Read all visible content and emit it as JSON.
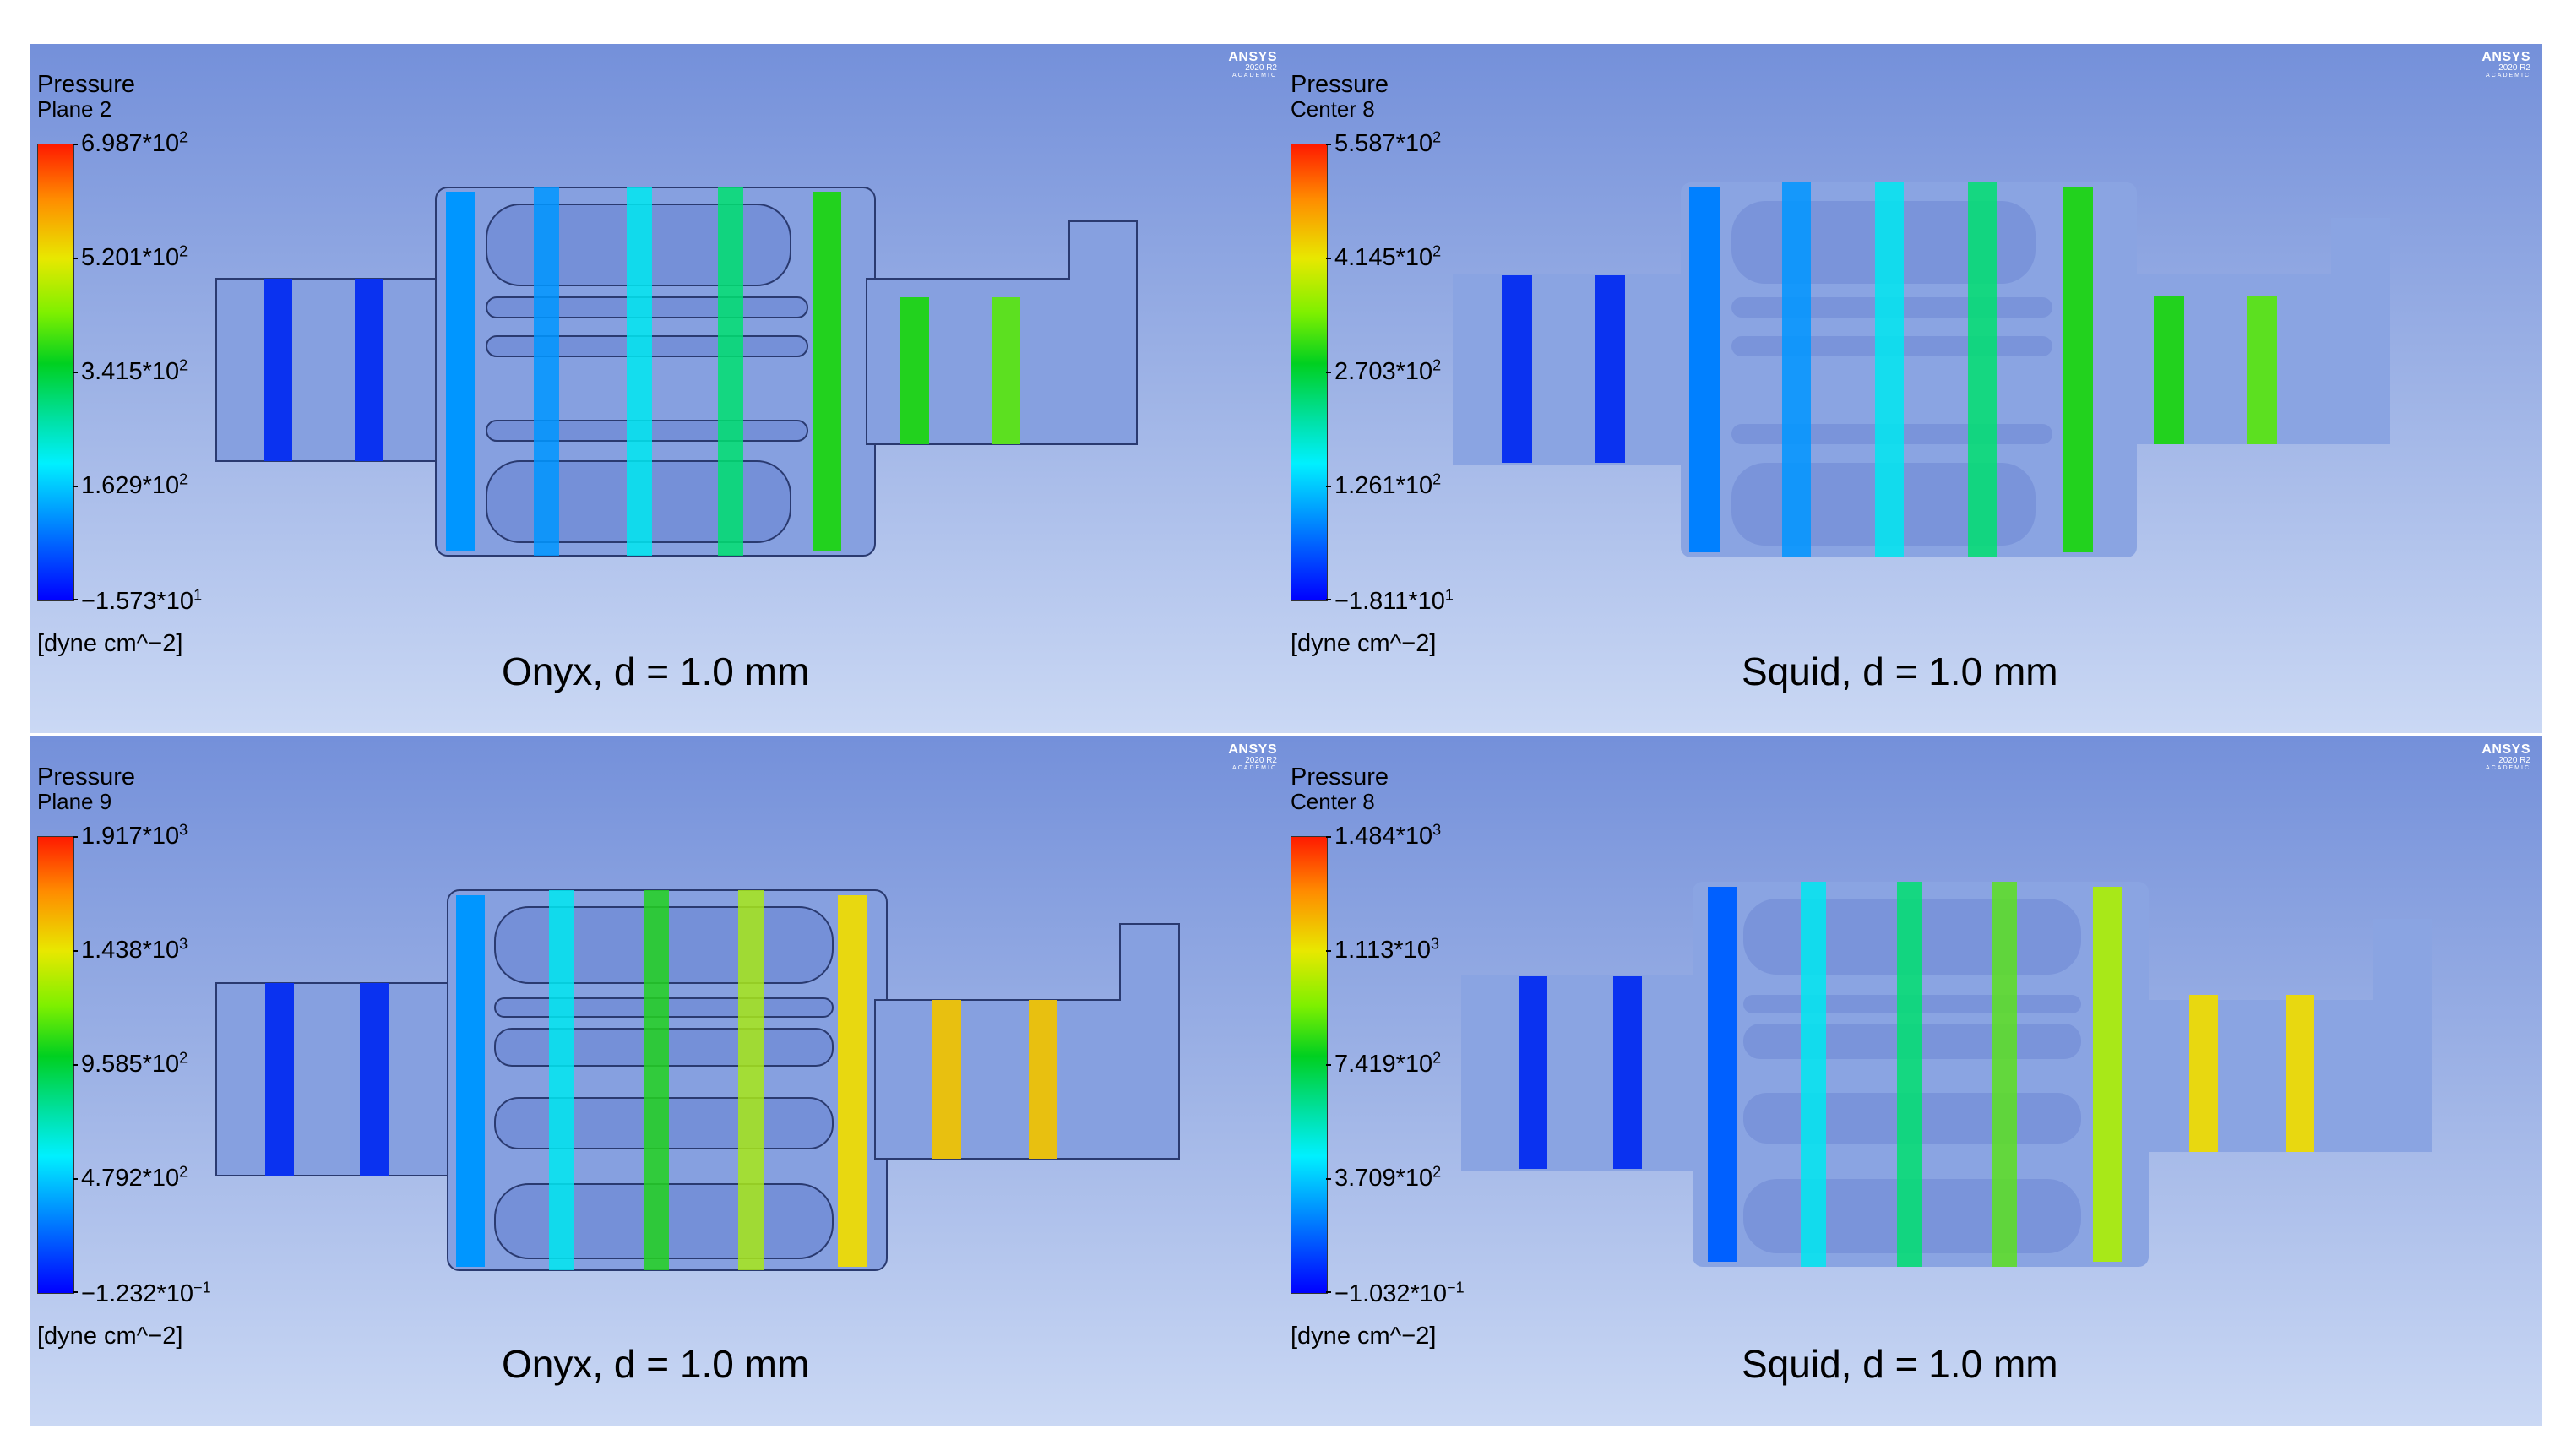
{
  "panels": [
    {
      "variable": "Pressure",
      "location": "Plane 2",
      "colorbar_ticks": [
        {
          "mant": "6.987*10",
          "exp": "2"
        },
        {
          "mant": "5.201*10",
          "exp": "2"
        },
        {
          "mant": "3.415*10",
          "exp": "2"
        },
        {
          "mant": "1.629*10",
          "exp": "2"
        },
        {
          "mant": "−1.573*10",
          "exp": "1"
        }
      ],
      "unit": "[dyne cm^−2]",
      "caption": "Onyx, d = 1.0 mm",
      "logo": {
        "line1": "ANSYS",
        "line2": "2020 R2",
        "line3": "ACADEMIC"
      }
    },
    {
      "variable": "Pressure",
      "location": "Center 8",
      "colorbar_ticks": [
        {
          "mant": "5.587*10",
          "exp": "2"
        },
        {
          "mant": "4.145*10",
          "exp": "2"
        },
        {
          "mant": "2.703*10",
          "exp": "2"
        },
        {
          "mant": "1.261*10",
          "exp": "2"
        },
        {
          "mant": "−1.811*10",
          "exp": "1"
        }
      ],
      "unit": "[dyne cm^−2]",
      "caption": "Squid, d = 1.0 mm",
      "logo": {
        "line1": "ANSYS",
        "line2": "2020 R2",
        "line3": "ACADEMIC"
      }
    },
    {
      "variable": "Pressure",
      "location": "Plane 9",
      "colorbar_ticks": [
        {
          "mant": "1.917*10",
          "exp": "3"
        },
        {
          "mant": "1.438*10",
          "exp": "3"
        },
        {
          "mant": "9.585*10",
          "exp": "2"
        },
        {
          "mant": "4.792*10",
          "exp": "2"
        },
        {
          "mant": "−1.232*10",
          "exp": "−1"
        }
      ],
      "unit": "[dyne cm^−2]",
      "caption": "Onyx, d = 1.0 mm",
      "logo": {
        "line1": "ANSYS",
        "line2": "2020 R2",
        "line3": "ACADEMIC"
      }
    },
    {
      "variable": "Pressure",
      "location": "Center 8",
      "colorbar_ticks": [
        {
          "mant": "1.484*10",
          "exp": "3"
        },
        {
          "mant": "1.113*10",
          "exp": "3"
        },
        {
          "mant": "7.419*10",
          "exp": "2"
        },
        {
          "mant": "3.709*10",
          "exp": "2"
        },
        {
          "mant": "−1.032*10",
          "exp": "−1"
        }
      ],
      "unit": "[dyne cm^−2]",
      "caption": "Squid, d = 1.0 mm",
      "logo": {
        "line1": "ANSYS",
        "line2": "2020 R2",
        "line3": "ACADEMIC"
      }
    }
  ],
  "colors": {
    "device_fill": "#86a0e0",
    "band_colors": [
      "#0a32f0",
      "#0060ff",
      "#0096ff",
      "#00e8f0",
      "#00e070",
      "#22d21e",
      "#5ce020",
      "#a8e818",
      "#e8d810",
      "#e8c010"
    ]
  }
}
